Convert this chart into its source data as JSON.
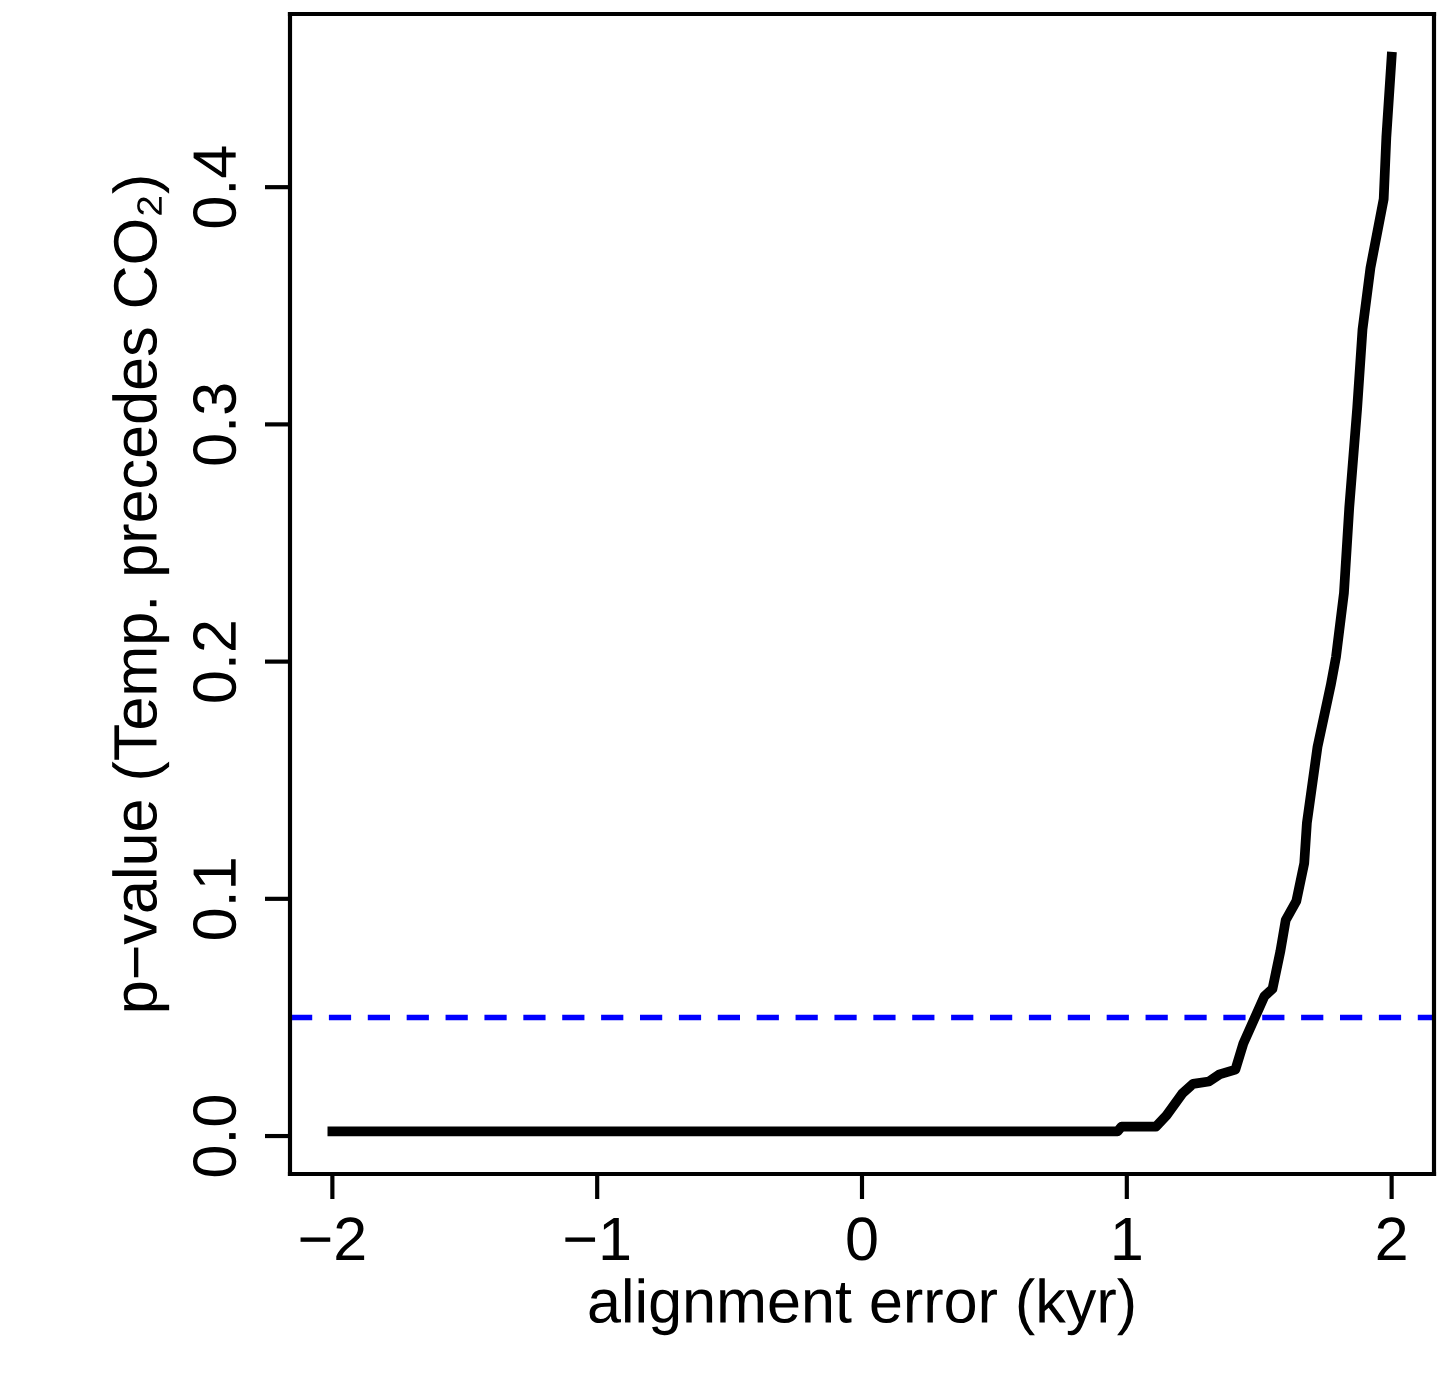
{
  "chart_data": {
    "type": "line",
    "xlabel": "alignment error (kyr)",
    "ylabel": "p−value (Temp. precedes CO₂)",
    "xlim": [
      -2.16,
      2.16
    ],
    "ylim": [
      -0.016,
      0.473
    ],
    "xticks": [
      {
        "value": -2,
        "label": "−2"
      },
      {
        "value": -1,
        "label": "−1"
      },
      0,
      1,
      2
    ],
    "yticks": [
      {
        "value": 0,
        "label": "0.0"
      },
      0.1,
      0.2,
      0.3,
      0.4
    ],
    "grid": false,
    "legend": false,
    "marker": "none",
    "line_style": "solid",
    "series": [
      {
        "color": "#000000",
        "x": [
          -2,
          0.965,
          0.98,
          1.11,
          1.15,
          1.21,
          1.25,
          1.31,
          1.35,
          1.41,
          1.44,
          1.48,
          1.52,
          1.55,
          1.58,
          1.6,
          1.64,
          1.67,
          1.68,
          1.72,
          1.77,
          1.79,
          1.82,
          1.84,
          1.87,
          1.89,
          1.92,
          1.97,
          1.98,
          2.0
        ],
        "values": [
          0.002,
          0.002,
          0.004,
          0.004,
          0.0087,
          0.018,
          0.022,
          0.023,
          0.026,
          0.028,
          0.039,
          0.049,
          0.059,
          0.062,
          0.078,
          0.091,
          0.099,
          0.115,
          0.132,
          0.164,
          0.19,
          0.202,
          0.229,
          0.265,
          0.307,
          0.34,
          0.366,
          0.395,
          0.421,
          0.455
        ]
      }
    ],
    "ref_lines": [
      {
        "axis": "y",
        "value": 0.05,
        "color": "#0000ff",
        "line_style": "dashed"
      }
    ]
  }
}
